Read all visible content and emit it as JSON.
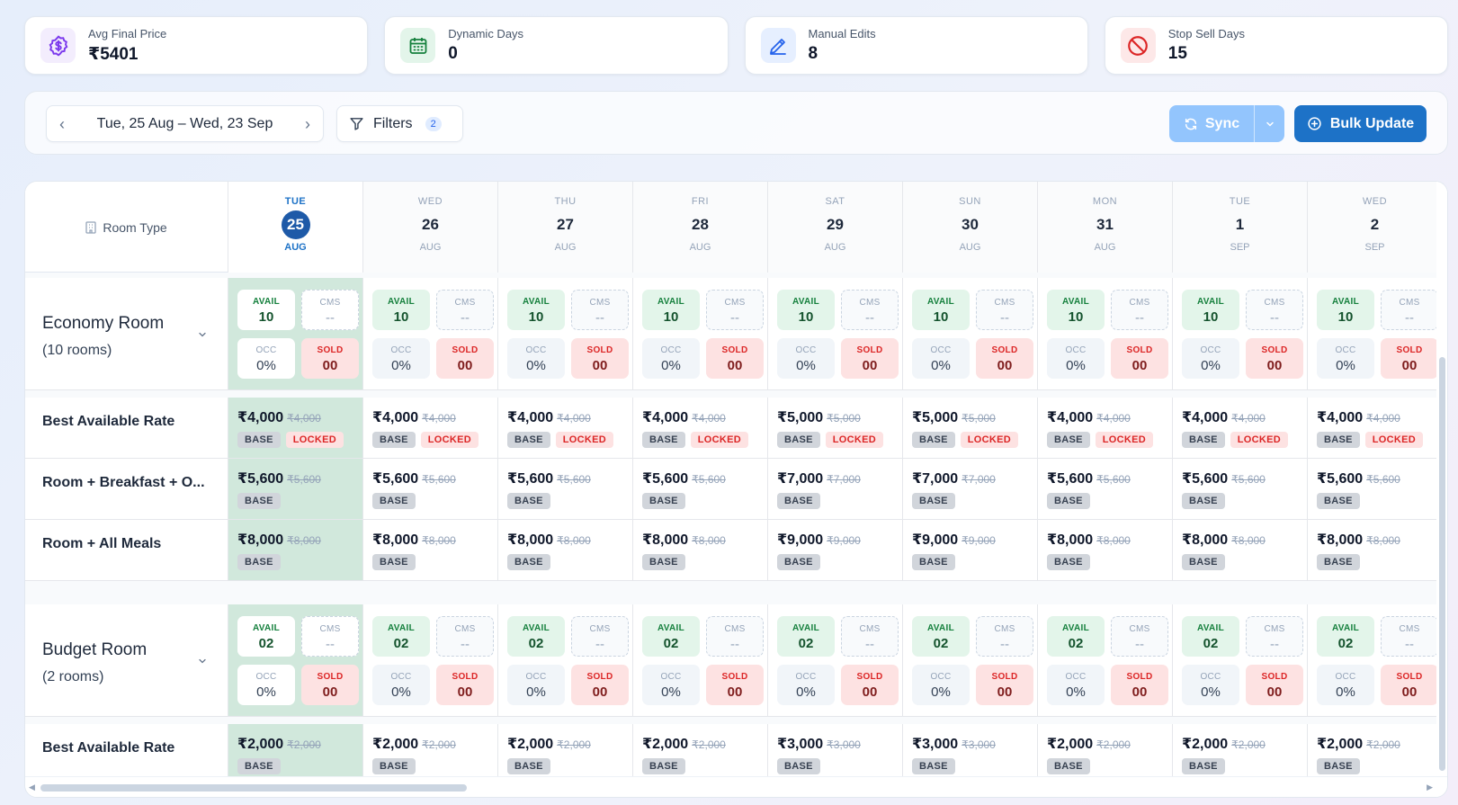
{
  "stats": [
    {
      "label": "Avg Final Price",
      "value": "₹5401",
      "icon": "currency-icon",
      "color": "#7c3aed",
      "bg": "#f3edfd"
    },
    {
      "label": "Dynamic Days",
      "value": "0",
      "icon": "calendar-icon",
      "color": "#15803d",
      "bg": "#e3f5ea"
    },
    {
      "label": "Manual Edits",
      "value": "8",
      "icon": "pencil-icon",
      "color": "#2563eb",
      "bg": "#e6efff"
    },
    {
      "label": "Stop Sell Days",
      "value": "15",
      "icon": "ban-icon",
      "color": "#dc2626",
      "bg": "#fde8e8"
    }
  ],
  "toolbar": {
    "date_range": "Tue, 25 Aug – Wed, 23 Sep",
    "filters_label": "Filters",
    "filters_count": "2",
    "sync_label": "Sync",
    "bulk_label": "Bulk Update"
  },
  "grid": {
    "room_type_header": "Room Type",
    "days": [
      {
        "dow": "TUE",
        "num": "25",
        "mon": "AUG",
        "today": true
      },
      {
        "dow": "WED",
        "num": "26",
        "mon": "AUG"
      },
      {
        "dow": "THU",
        "num": "27",
        "mon": "AUG"
      },
      {
        "dow": "FRI",
        "num": "28",
        "mon": "AUG"
      },
      {
        "dow": "SAT",
        "num": "29",
        "mon": "AUG"
      },
      {
        "dow": "SUN",
        "num": "30",
        "mon": "AUG"
      },
      {
        "dow": "MON",
        "num": "31",
        "mon": "AUG"
      },
      {
        "dow": "TUE",
        "num": "1",
        "mon": "SEP"
      },
      {
        "dow": "WED",
        "num": "2",
        "mon": "SEP"
      }
    ],
    "labels": {
      "avail": "AVAIL",
      "cms": "CMS",
      "occ": "OCC",
      "sold": "SOLD",
      "base": "BASE",
      "locked": "LOCKED"
    },
    "rooms": [
      {
        "name": "Economy Room",
        "count": "(10 rooms)",
        "inventory": {
          "avail": "10",
          "cms": "--",
          "occ": "0%",
          "sold": "00"
        },
        "plans": [
          {
            "name": "Best Available Rate",
            "locked": true,
            "prices": [
              "₹4,000",
              "₹4,000",
              "₹4,000",
              "₹4,000",
              "₹5,000",
              "₹5,000",
              "₹4,000",
              "₹4,000",
              "₹4,000"
            ]
          },
          {
            "name": "Room + Breakfast + O...",
            "locked": false,
            "prices": [
              "₹5,600",
              "₹5,600",
              "₹5,600",
              "₹5,600",
              "₹7,000",
              "₹7,000",
              "₹5,600",
              "₹5,600",
              "₹5,600"
            ]
          },
          {
            "name": "Room + All Meals",
            "locked": false,
            "prices": [
              "₹8,000",
              "₹8,000",
              "₹8,000",
              "₹8,000",
              "₹9,000",
              "₹9,000",
              "₹8,000",
              "₹8,000",
              "₹8,000"
            ]
          }
        ]
      },
      {
        "name": "Budget Room",
        "count": "(2 rooms)",
        "inventory": {
          "avail": "02",
          "cms": "--",
          "occ": "0%",
          "sold": "00"
        },
        "plans": [
          {
            "name": "Best Available Rate",
            "locked": false,
            "prices": [
              "₹2,000",
              "₹2,000",
              "₹2,000",
              "₹2,000",
              "₹3,000",
              "₹3,000",
              "₹2,000",
              "₹2,000",
              "₹2,000"
            ]
          }
        ]
      }
    ]
  }
}
